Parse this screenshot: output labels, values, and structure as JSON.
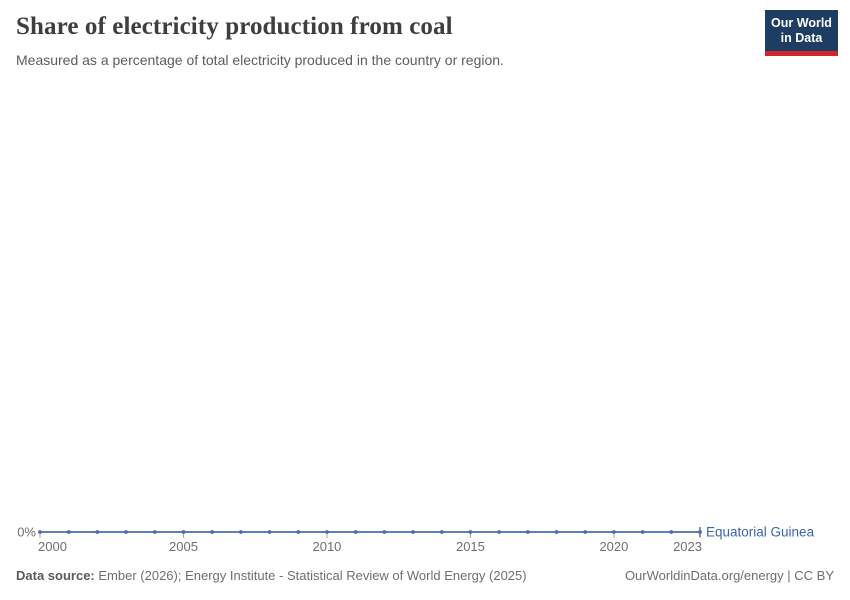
{
  "header": {
    "title": "Share of electricity production from coal",
    "subtitle": "Measured as a percentage of total electricity produced in the country or region."
  },
  "logo": {
    "line1": "Our World",
    "line2": "in Data",
    "bg_color": "#1d3d63",
    "stripe_color": "#d0262b"
  },
  "chart_data": {
    "type": "line",
    "title": "Share of electricity production from coal",
    "subtitle": "Measured as a percentage of total electricity produced in the country or region.",
    "xlabel": "",
    "ylabel": "",
    "grid": false,
    "legend_position": "end-of-line-label",
    "x": [
      2000,
      2001,
      2002,
      2003,
      2004,
      2005,
      2006,
      2007,
      2008,
      2009,
      2010,
      2011,
      2012,
      2013,
      2014,
      2015,
      2016,
      2017,
      2018,
      2019,
      2020,
      2021,
      2022,
      2023
    ],
    "series": [
      {
        "name": "Equatorial Guinea",
        "color": "#4c6cad",
        "label_color": "#3a66ad",
        "values": [
          0,
          0,
          0,
          0,
          0,
          0,
          0,
          0,
          0,
          0,
          0,
          0,
          0,
          0,
          0,
          0,
          0,
          0,
          0,
          0,
          0,
          0,
          0,
          0
        ]
      }
    ],
    "x_ticks": [
      2000,
      2005,
      2010,
      2015,
      2020,
      2023
    ],
    "x_tick_labels": [
      "2000",
      "2005",
      "2010",
      "2015",
      "2020",
      "2023"
    ],
    "y_tick_labels": [
      "0%"
    ],
    "y_unit": "%",
    "axis_text_color": "#6e6e6e",
    "tick_color": "#a7a7a7"
  },
  "footer": {
    "source_label": "Data source:",
    "source_text": "Ember (2026); Energy Institute - Statistical Review of World Energy (2025)",
    "attribution": "OurWorldinData.org/energy | CC BY"
  }
}
